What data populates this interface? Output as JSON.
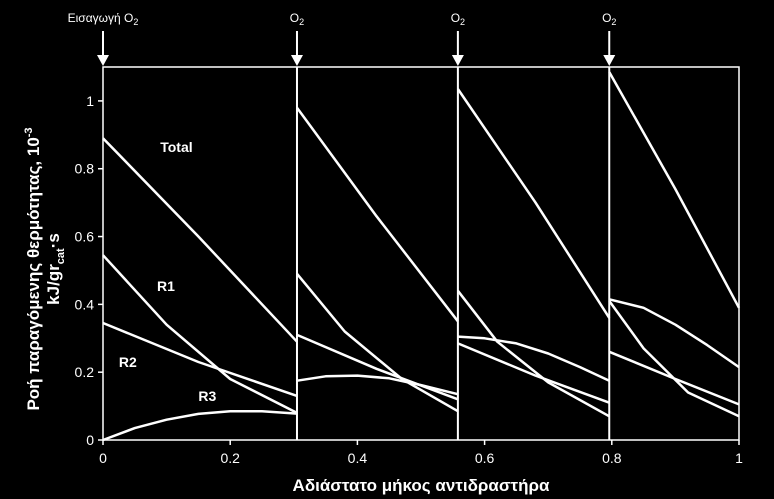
{
  "chart_data": {
    "type": "line",
    "xlabel": "Αδιάστατο μήκος αντιδραστήρα",
    "ylabel_line1": "Ροή παραγόμενης θερμότητας, 10",
    "ylabel_exp": "-3",
    "ylabel_line2_pre": "kJ/gr",
    "ylabel_line2_sub": "cat",
    "ylabel_line2_post": "·s",
    "xlim": [
      0,
      1
    ],
    "ylim": [
      0,
      1.1
    ],
    "x_ticks": [
      "0",
      "0.2",
      "0.4",
      "0.6",
      "0.8",
      "1"
    ],
    "x_tick_values": [
      0,
      0.2,
      0.4,
      0.6,
      0.8,
      1
    ],
    "y_ticks": [
      "0",
      "0.2",
      "0.4",
      "0.6",
      "0.8",
      "1"
    ],
    "y_tick_values": [
      0,
      0.2,
      0.4,
      0.6,
      0.8,
      1
    ],
    "stage_boundaries": [
      0.305,
      0.558,
      0.796
    ],
    "injections": [
      {
        "x": 0,
        "label": "Εισαγωγή O",
        "sub": "2"
      },
      {
        "x": 0.305,
        "label": "O",
        "sub": "2"
      },
      {
        "x": 0.558,
        "label": "O",
        "sub": "2"
      },
      {
        "x": 0.796,
        "label": "O",
        "sub": "2"
      }
    ],
    "series": [
      {
        "name": "Total",
        "segments": [
          {
            "x": [
              0,
              0.15,
              0.305
            ],
            "y": [
              0.89,
              0.6,
              0.29
            ]
          },
          {
            "x": [
              0.305,
              0.43,
              0.558
            ],
            "y": [
              0.98,
              0.66,
              0.35
            ]
          },
          {
            "x": [
              0.558,
              0.68,
              0.796
            ],
            "y": [
              1.035,
              0.7,
              0.36
            ]
          },
          {
            "x": [
              0.796,
              0.9,
              1.0
            ],
            "y": [
              1.085,
              0.74,
              0.39
            ]
          }
        ]
      },
      {
        "name": "R1",
        "segments": [
          {
            "x": [
              0,
              0.1,
              0.2,
              0.305
            ],
            "y": [
              0.545,
              0.34,
              0.18,
              0.08
            ]
          },
          {
            "x": [
              0.305,
              0.38,
              0.47,
              0.558
            ],
            "y": [
              0.49,
              0.32,
              0.18,
              0.085
            ]
          },
          {
            "x": [
              0.558,
              0.62,
              0.7,
              0.796
            ],
            "y": [
              0.44,
              0.29,
              0.17,
              0.07
            ]
          },
          {
            "x": [
              0.796,
              0.85,
              0.92,
              1.0
            ],
            "y": [
              0.41,
              0.27,
              0.14,
              0.07
            ]
          }
        ]
      },
      {
        "name": "R2",
        "segments": [
          {
            "x": [
              0,
              0.15,
              0.305
            ],
            "y": [
              0.345,
              0.23,
              0.13
            ]
          },
          {
            "x": [
              0.305,
              0.43,
              0.558
            ],
            "y": [
              0.31,
              0.21,
              0.12
            ]
          },
          {
            "x": [
              0.558,
              0.68,
              0.796
            ],
            "y": [
              0.285,
              0.19,
              0.11
            ]
          },
          {
            "x": [
              0.796,
              0.9,
              1.0
            ],
            "y": [
              0.26,
              0.18,
              0.105
            ]
          }
        ]
      },
      {
        "name": "R3",
        "segments": [
          {
            "x": [
              0,
              0.05,
              0.1,
              0.15,
              0.2,
              0.25,
              0.305
            ],
            "y": [
              0.0,
              0.035,
              0.06,
              0.077,
              0.085,
              0.085,
              0.078
            ]
          },
          {
            "x": [
              0.305,
              0.35,
              0.4,
              0.45,
              0.5,
              0.558
            ],
            "y": [
              0.175,
              0.188,
              0.19,
              0.182,
              0.162,
              0.135
            ]
          },
          {
            "x": [
              0.558,
              0.6,
              0.65,
              0.7,
              0.75,
              0.796
            ],
            "y": [
              0.305,
              0.3,
              0.285,
              0.255,
              0.215,
              0.175
            ]
          },
          {
            "x": [
              0.796,
              0.85,
              0.9,
              0.95,
              1.0
            ],
            "y": [
              0.415,
              0.39,
              0.34,
              0.28,
              0.215
            ]
          }
        ]
      }
    ],
    "curve_labels": [
      {
        "text": "Total",
        "x": 0.09,
        "y": 0.85
      },
      {
        "text": "R1",
        "x": 0.085,
        "y": 0.44
      },
      {
        "text": "R2",
        "x": 0.025,
        "y": 0.215
      },
      {
        "text": "R3",
        "x": 0.15,
        "y": 0.115
      }
    ]
  }
}
